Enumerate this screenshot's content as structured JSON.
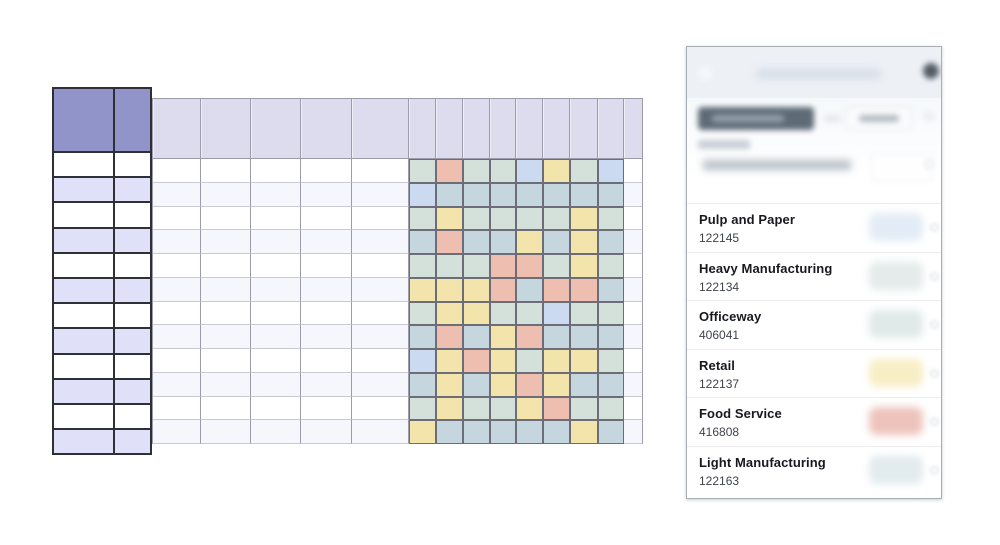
{
  "workspace": {
    "background": "#ffffff"
  },
  "frozen_table": {
    "columns": 2,
    "rows": 12,
    "header_fill": "#9194c9",
    "row_fill_even": "#ffffff",
    "row_fill_odd": "#e0e1f9",
    "grid_line": "#2f2f36"
  },
  "main_grid": {
    "rows": 12,
    "header_fill": "#dcdcee",
    "row_fill_even": "#ffffff",
    "row_fill_odd": "#f6f6fd",
    "v_line": "#9b9ba9",
    "h_line": "#cacad7",
    "heat_line": "#6d6d78"
  },
  "heatmap": {
    "palette": {
      "G_light": "#d4e1db",
      "G_dark": "#c6d6de",
      "Y": "#f2e4ab",
      "R": "#eebfb0",
      "B": "#cbdaf0"
    },
    "cells": [
      "GRGGBYGB",
      "BGGGGGGG",
      "GYGGGGYG",
      "GRGGYGYG",
      "GGGRRGYG",
      "YYYRGRRG",
      "GYYGGBGG",
      "GRGYRGGG",
      "BYRYGYYG",
      "GYGYRYGG",
      "GYGGYRGG",
      "YGGGGGYG"
    ]
  },
  "panel": {
    "header_fill": "#edf1f6",
    "border_color": "#a9aeb4",
    "items": [
      {
        "name": "Pulp and Paper",
        "code": "122145",
        "badge_color": "#e3ecf6"
      },
      {
        "name": "Heavy Manufacturing",
        "code": "122134",
        "badge_color": "#e4ebea"
      },
      {
        "name": "Officeway",
        "code": "406041",
        "badge_color": "#e0eae9"
      },
      {
        "name": "Retail",
        "code": "122137",
        "badge_color": "#f8eec6"
      },
      {
        "name": "Food Service",
        "code": "416808",
        "badge_color": "#edc4bb"
      },
      {
        "name": "Light Manufacturing",
        "code": "122163",
        "badge_color": "#e2ebee"
      }
    ]
  }
}
